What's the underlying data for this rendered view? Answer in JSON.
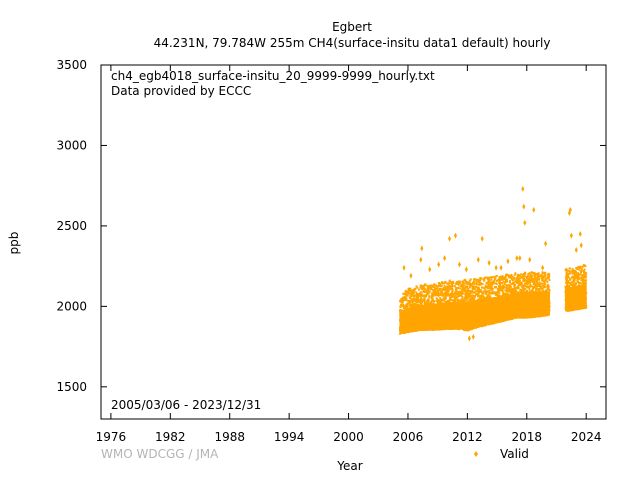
{
  "chart_data": {
    "type": "scatter",
    "title": "Egbert",
    "subtitle": "44.231N, 79.784W 255m    CH4(surface-insitu data1 default) hourly",
    "xlabel": "Year",
    "ylabel": "ppb",
    "xlim": [
      1975,
      2026
    ],
    "ylim": [
      1300,
      3500
    ],
    "x_ticks": [
      "1976",
      "1982",
      "1988",
      "1994",
      "2000",
      "2006",
      "2012",
      "2018",
      "2024"
    ],
    "x_tick_values": [
      1976,
      1982,
      1988,
      1994,
      2000,
      2006,
      2012,
      2018,
      2024
    ],
    "y_ticks": [
      "1500",
      "2000",
      "2500",
      "3000",
      "3500"
    ],
    "y_tick_values": [
      1500,
      2000,
      2500,
      3000,
      3500
    ],
    "annotation_file": "ch4_egb4018_surface-insitu_20_9999-9999_hourly.txt",
    "annotation_provider": "Data provided by ECCC",
    "date_range": "2005/03/06 - 2023/12/31",
    "watermark": "WMO WDCGG / JMA",
    "legend_position": "bottom-right",
    "series": [
      {
        "name": "Valid",
        "color": "#FFA500",
        "band": [
          [
            2005.2,
            1830,
            2060
          ],
          [
            2006.0,
            1840,
            2110
          ],
          [
            2007.0,
            1850,
            2130
          ],
          [
            2008.0,
            1855,
            2140
          ],
          [
            2009.0,
            1855,
            2150
          ],
          [
            2010.0,
            1860,
            2160
          ],
          [
            2011.0,
            1860,
            2160
          ],
          [
            2012.0,
            1850,
            2170
          ],
          [
            2013.0,
            1870,
            2180
          ],
          [
            2014.0,
            1885,
            2180
          ],
          [
            2015.0,
            1900,
            2190
          ],
          [
            2016.0,
            1915,
            2200
          ],
          [
            2017.0,
            1930,
            2210
          ],
          [
            2018.0,
            1930,
            2210
          ],
          [
            2019.0,
            1935,
            2215
          ],
          [
            2020.0,
            1945,
            2210
          ],
          [
            2020.3,
            1950,
            2200
          ],
          [
            2021.9,
            1970,
            2230
          ],
          [
            2023.99,
            1990,
            2260
          ]
        ],
        "outliers": [
          [
            2005.6,
            2240
          ],
          [
            2006.3,
            2190
          ],
          [
            2007.3,
            2290
          ],
          [
            2007.4,
            2360
          ],
          [
            2008.2,
            2230
          ],
          [
            2009.1,
            2260
          ],
          [
            2009.7,
            2300
          ],
          [
            2010.2,
            2420
          ],
          [
            2010.8,
            2440
          ],
          [
            2011.2,
            2260
          ],
          [
            2011.9,
            2230
          ],
          [
            2012.2,
            1800
          ],
          [
            2012.6,
            1810
          ],
          [
            2013.1,
            2290
          ],
          [
            2013.5,
            2420
          ],
          [
            2014.2,
            2270
          ],
          [
            2014.9,
            2240
          ],
          [
            2015.4,
            2240
          ],
          [
            2016.1,
            2280
          ],
          [
            2017.0,
            2300
          ],
          [
            2017.3,
            2300
          ],
          [
            2017.6,
            2730
          ],
          [
            2017.7,
            2620
          ],
          [
            2017.8,
            2520
          ],
          [
            2018.3,
            2290
          ],
          [
            2018.7,
            2600
          ],
          [
            2019.6,
            2240
          ],
          [
            2019.9,
            2390
          ],
          [
            2022.3,
            2580
          ],
          [
            2022.4,
            2600
          ],
          [
            2022.5,
            2440
          ],
          [
            2023.0,
            2350
          ],
          [
            2023.4,
            2450
          ],
          [
            2023.5,
            2380
          ]
        ]
      }
    ]
  }
}
